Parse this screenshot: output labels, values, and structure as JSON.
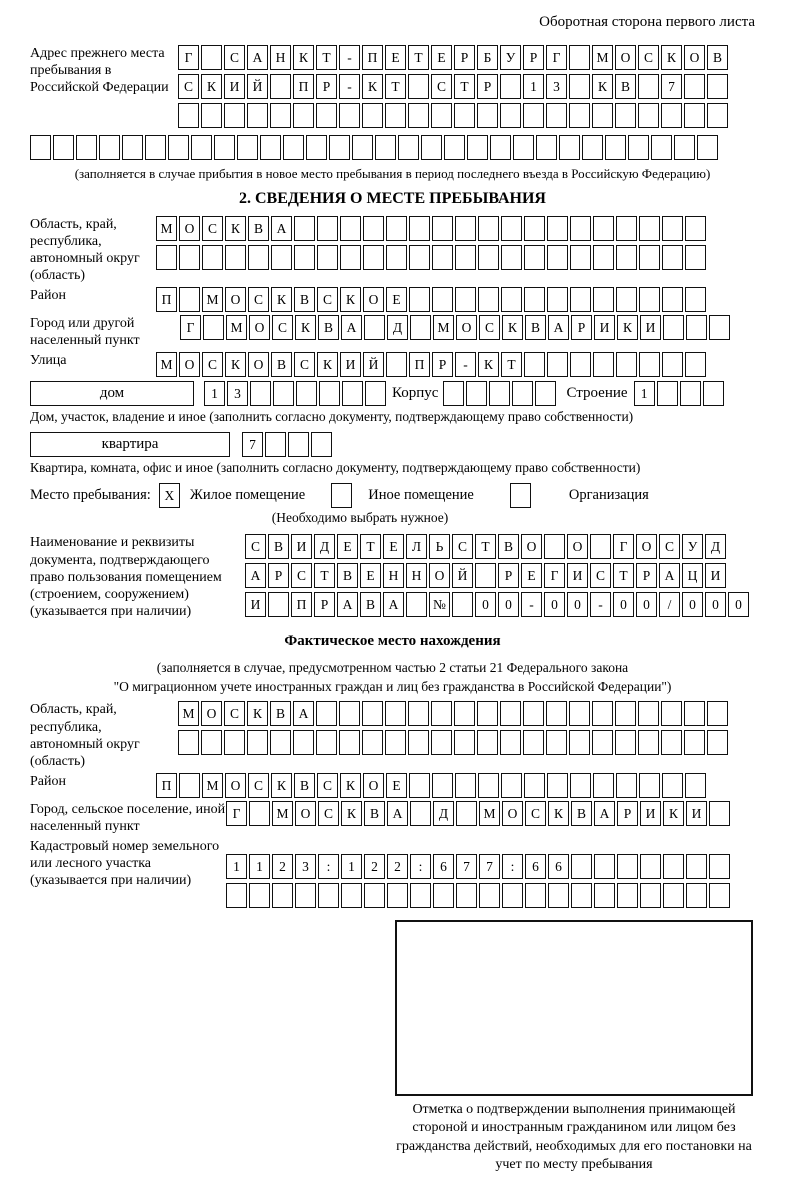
{
  "header": {
    "note": "Оборотная сторона первого листа"
  },
  "prev_address": {
    "label": "Адрес прежнего места пребывания в Российской Федерации",
    "rows": [
      "Г САНКТ-ПЕТЕРБУРГ МОСКОВ",
      "СКИЙ ПР-КТ СТР 13 КВ 7",
      ""
    ],
    "overflow_row": "",
    "caption": "(заполняется в случае прибытия в новое место пребывания в период последнего въезда в Российскую Федерацию)"
  },
  "section2": {
    "title": "2. СВЕДЕНИЯ О МЕСТЕ ПРЕБЫВАНИЯ",
    "oblast": {
      "label": "Область, край, республика, автономный округ (область)",
      "rows": [
        "МОСКВА",
        ""
      ]
    },
    "raion": {
      "label": "Район",
      "value": "П МОСКВСКОЕ"
    },
    "gorod": {
      "label": "Город или другой населенный пункт",
      "value": "Г МОСКВА Д МОСКВАРИКИ"
    },
    "ulitsa": {
      "label": "Улица",
      "value": "МОСКОВСКИЙ ПР-КТ"
    },
    "dom": {
      "box_label": "дом",
      "value": "13",
      "korpus_label": "Корпус",
      "korpus_value": "",
      "stroenie_label": "Строение",
      "stroenie_value": "1",
      "caption": "Дом, участок, владение и иное (заполнить согласно документу, подтверждающему право собственности)"
    },
    "kvartira": {
      "box_label": "квартира",
      "value": "7",
      "caption": "Квартира, комната, офис и иное (заполнить согласно документу, подтверждающему право собственности)"
    },
    "mesto": {
      "label": "Место пребывания:",
      "option1_mark": "X",
      "option1": "Жилое помещение",
      "option2_mark": "",
      "option2": "Иное помещение",
      "option3_mark": "",
      "option3": "Организация",
      "caption": "(Необходимо выбрать нужное)"
    },
    "doc": {
      "label": "Наименование и реквизиты документа, подтверждающего право пользования помещением (строением, сооружением) (указывается при наличии)",
      "rows": [
        "СВИДЕТЕЛЬСТВО О ГОСУД",
        "АРСТВЕННОЙ РЕГИСТРАЦИ",
        "И ПРАВА № 00-00-00/000"
      ]
    }
  },
  "factual": {
    "title": "Фактическое место нахождения",
    "caption_line1": "(заполняется в случае, предусмотренном частью 2 статьи 21 Федерального закона",
    "caption_line2": "\"О миграционном учете иностранных граждан и лиц без гражданства в Российской Федерации\")",
    "oblast": {
      "label": "Область, край, республика, автономный округ (область)",
      "rows": [
        "МОСКВА",
        ""
      ]
    },
    "raion": {
      "label": "Район",
      "value": "П МОСКВСКОЕ"
    },
    "gorod": {
      "label": "Город, сельское поселение, иной населенный пункт",
      "value": "Г МОСКВА Д МОСКВАРИКИ"
    },
    "kadastr": {
      "label": "Кадастровый номер земельного или лесного участка (указывается при наличии)",
      "rows": [
        "1123:122:677:66",
        ""
      ]
    }
  },
  "stamp": {
    "caption": "Отметка о подтверждении выполнения принимающей стороной и иностранным гражданином или лицом без гражданства действий, необходимых для его постановки на учет по месту пребывания"
  }
}
